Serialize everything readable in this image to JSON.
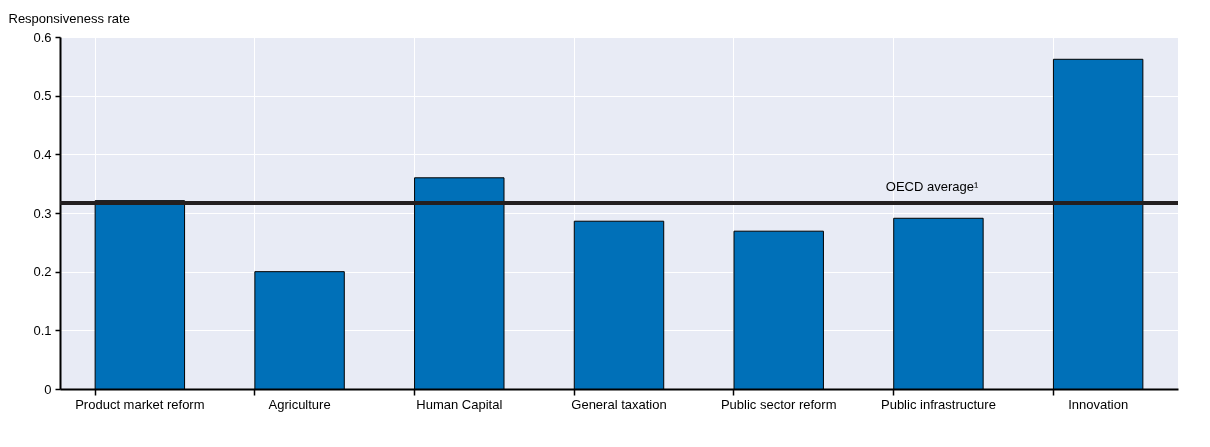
{
  "chart_data": {
    "type": "bar",
    "ylabel": "Responsiveness rate",
    "categories": [
      "Product market reform",
      "Agriculture",
      "Human Capital",
      "General taxation",
      "Public sector reform",
      "Public infrastructure",
      "Innovation"
    ],
    "values": [
      0.321,
      0.2,
      0.36,
      0.286,
      0.269,
      0.291,
      0.562
    ],
    "color": "#0070b8",
    "ylim": [
      0,
      0.6
    ],
    "yticks": [
      0,
      0.1,
      0.2,
      0.3,
      0.4,
      0.5,
      0.6
    ],
    "grid": true,
    "ref_lines": [
      {
        "axis": "y",
        "value": 0.317,
        "label": "OECD average¹",
        "color": "#231f20",
        "line_style": "solid"
      }
    ]
  }
}
